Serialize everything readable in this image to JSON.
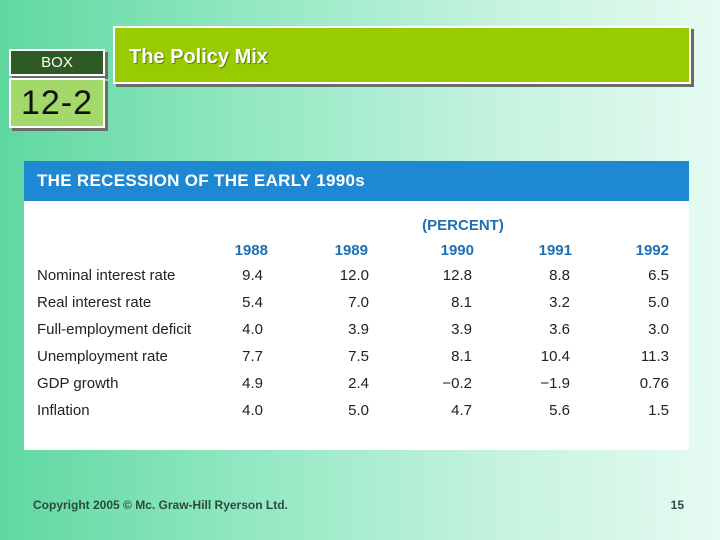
{
  "box": {
    "label": "BOX",
    "number": "12-2"
  },
  "title": "The Policy Mix",
  "table": {
    "header": "THE RECESSION OF THE EARLY 1990s",
    "unit": "(PERCENT)",
    "years": [
      "1988",
      "1989",
      "1990",
      "1991",
      "1992"
    ],
    "rows": [
      {
        "label": "Nominal interest rate",
        "values": [
          "9.4",
          "12.0",
          "12.8",
          "8.8",
          "6.5"
        ]
      },
      {
        "label": "Real interest rate",
        "values": [
          "5.4",
          "7.0",
          "8.1",
          "3.2",
          "5.0"
        ]
      },
      {
        "label": "Full-employment deficit",
        "values": [
          "4.0",
          "3.9",
          "3.9",
          "3.6",
          "3.0"
        ]
      },
      {
        "label": "Unemployment rate",
        "values": [
          "7.7",
          "7.5",
          "8.1",
          "10.4",
          "11.3"
        ]
      },
      {
        "label": "GDP growth",
        "values": [
          "4.9",
          "2.4",
          "−0.2",
          "−1.9",
          "0.76"
        ]
      },
      {
        "label": "Inflation",
        "values": [
          "4.0",
          "5.0",
          "4.7",
          "5.6",
          "1.5"
        ]
      }
    ]
  },
  "footer": {
    "copyright": "Copyright 2005 © Mc. Graw-Hill Ryerson Ltd.",
    "page": "15"
  },
  "colors": {
    "title_bar": "#99cc00",
    "box_label_bg": "#2e5a24",
    "box_number_bg": "#a3d86b",
    "table_header": "#1e88d2",
    "year_text": "#1e6fb3"
  }
}
